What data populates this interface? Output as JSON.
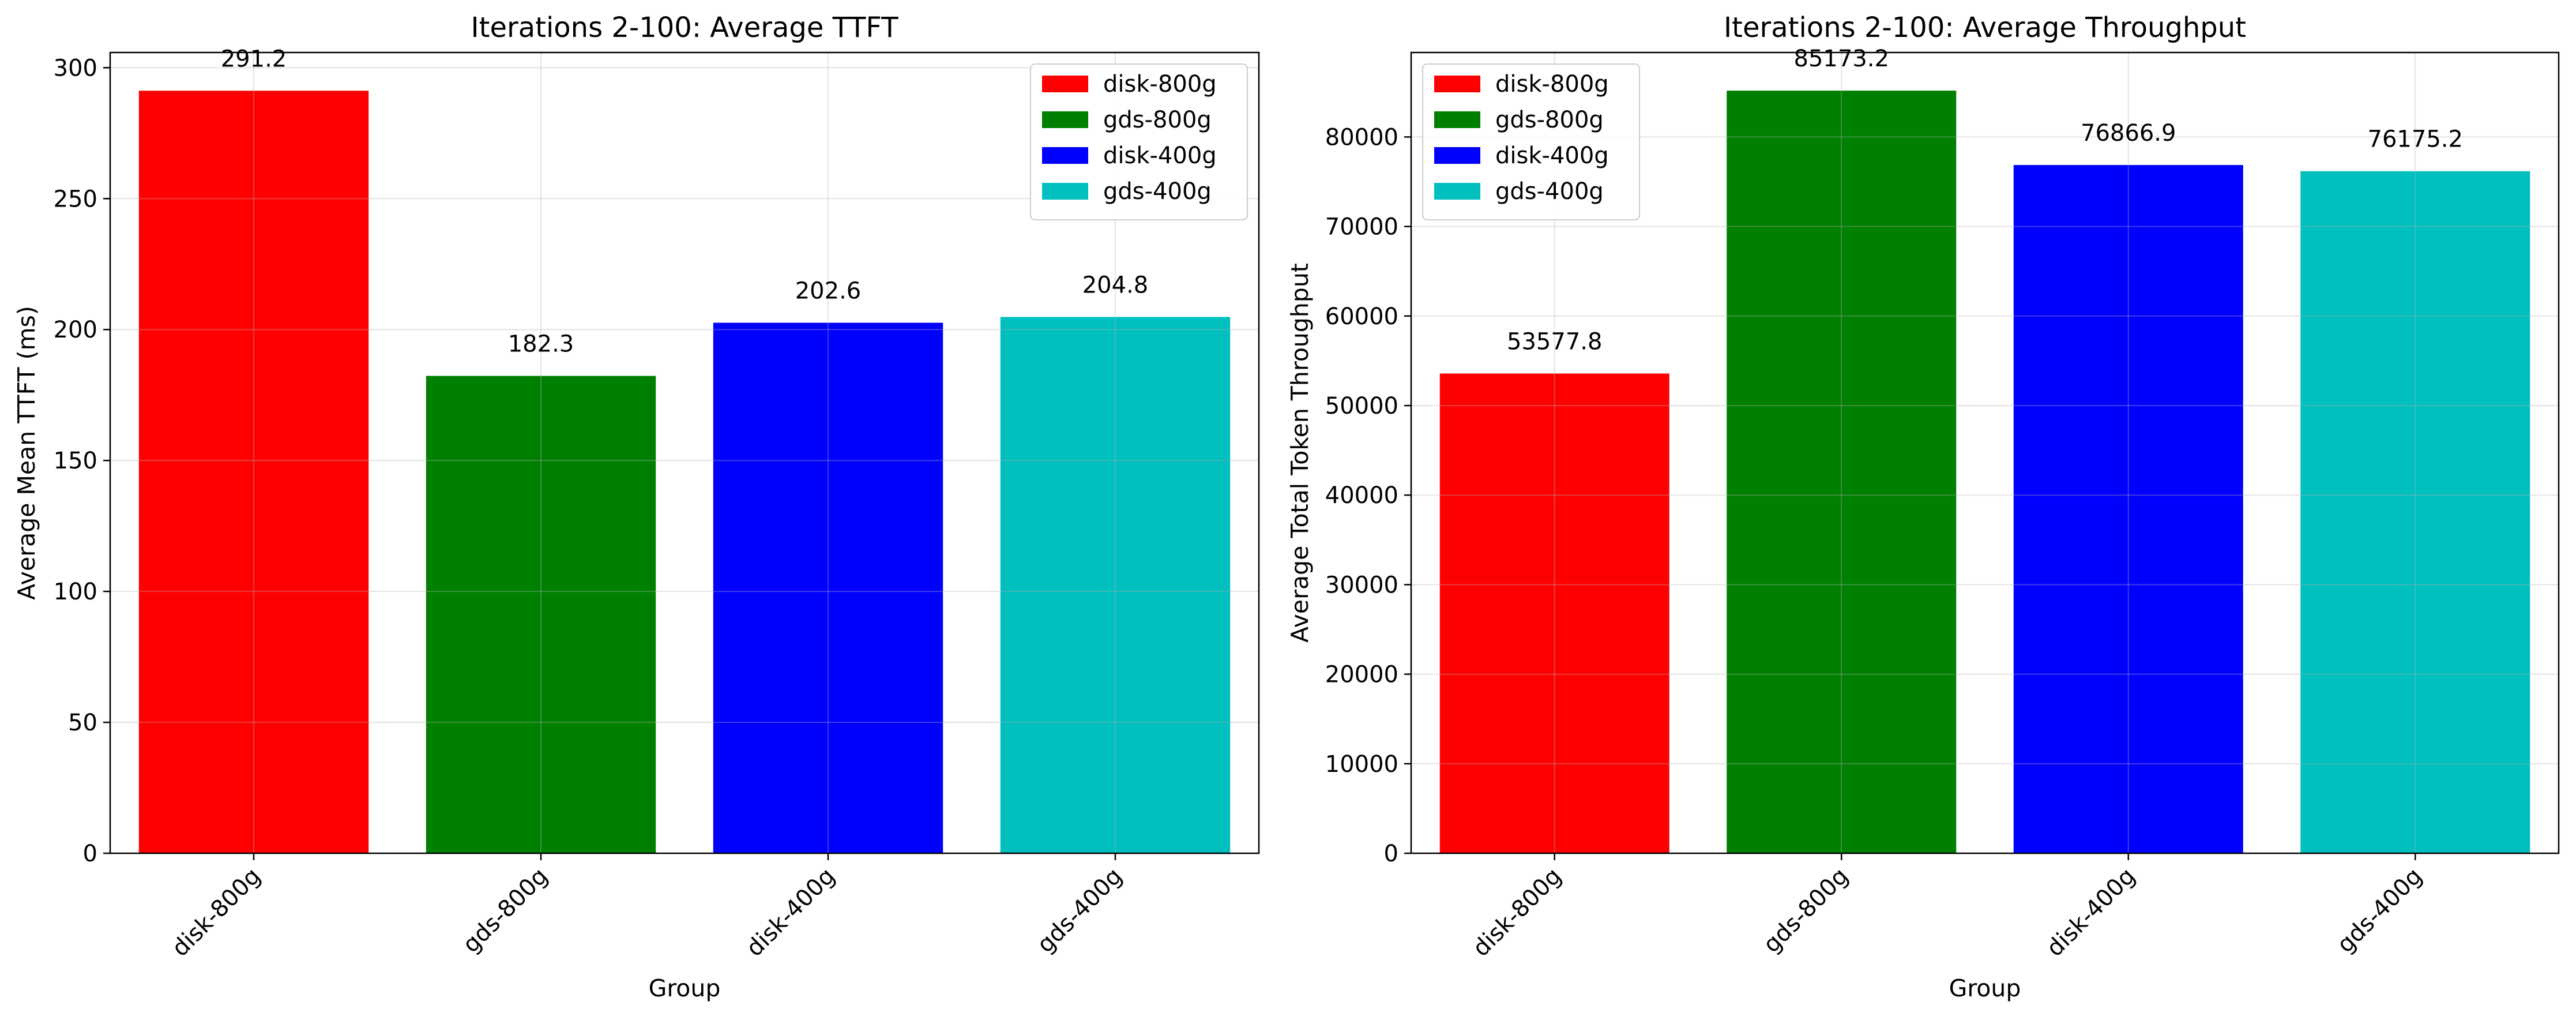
{
  "chart_data": [
    {
      "type": "bar",
      "title": "Iterations 2-100: Average TTFT",
      "xlabel": "Group",
      "ylabel": "Average Mean TTFT (ms)",
      "categories": [
        "disk-800g",
        "gds-800g",
        "disk-400g",
        "gds-400g"
      ],
      "values": [
        291.2,
        182.3,
        202.6,
        204.8
      ],
      "value_labels": [
        "291.2",
        "182.3",
        "202.6",
        "204.8"
      ],
      "colors": [
        "#ff0000",
        "#008000",
        "#0000ff",
        "#00bfbf"
      ],
      "ylim": [
        0,
        305.8
      ],
      "yticks": [
        0,
        50,
        100,
        150,
        200,
        250,
        300
      ],
      "ytick_labels": [
        "0",
        "50",
        "100",
        "150",
        "200",
        "250",
        "300"
      ],
      "grid": true,
      "legend": {
        "position": "upper right",
        "entries": [
          "disk-800g",
          "gds-800g",
          "disk-400g",
          "gds-400g"
        ]
      }
    },
    {
      "type": "bar",
      "title": "Iterations 2-100: Average Throughput",
      "xlabel": "Group",
      "ylabel": "Average Total Token Throughput",
      "categories": [
        "disk-800g",
        "gds-800g",
        "disk-400g",
        "gds-400g"
      ],
      "values": [
        53577.8,
        85173.2,
        76866.9,
        76175.2
      ],
      "value_labels": [
        "53577.8",
        "85173.2",
        "76866.9",
        "76175.2"
      ],
      "colors": [
        "#ff0000",
        "#008000",
        "#0000ff",
        "#00bfbf"
      ],
      "ylim": [
        0,
        89432
      ],
      "yticks": [
        0,
        10000,
        20000,
        30000,
        40000,
        50000,
        60000,
        70000,
        80000
      ],
      "ytick_labels": [
        "0",
        "10000",
        "20000",
        "30000",
        "40000",
        "50000",
        "60000",
        "70000",
        "80000"
      ],
      "grid": true,
      "legend": {
        "position": "upper left",
        "entries": [
          "disk-800g",
          "gds-800g",
          "disk-400g",
          "gds-400g"
        ]
      }
    }
  ]
}
